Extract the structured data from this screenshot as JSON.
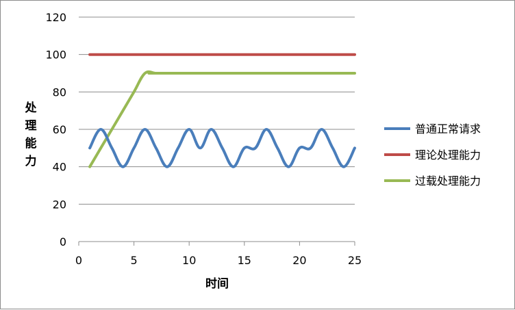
{
  "chart_data": {
    "type": "line",
    "xlabel": "时间",
    "ylabel": "处理能力",
    "xlim": [
      0,
      25
    ],
    "ylim": [
      0,
      120
    ],
    "xticks": [
      0,
      5,
      10,
      15,
      20,
      25
    ],
    "yticks": [
      0,
      20,
      40,
      60,
      80,
      100,
      120
    ],
    "grid": "horizontal",
    "legend": "right",
    "series": [
      {
        "name": "普通正常请求",
        "color": "#4a7ebb",
        "smooth": true,
        "x": [
          1,
          2,
          3,
          4,
          5,
          6,
          7,
          8,
          9,
          10,
          11,
          12,
          13,
          14,
          15,
          16,
          17,
          18,
          19,
          20,
          21,
          22,
          23,
          24,
          25
        ],
        "values": [
          50,
          60,
          50,
          40,
          50,
          60,
          50,
          40,
          50,
          60,
          50,
          60,
          50,
          40,
          50,
          50,
          60,
          50,
          40,
          50,
          50,
          60,
          50,
          40,
          50
        ]
      },
      {
        "name": "理论处理能力",
        "color": "#be4b48",
        "smooth": false,
        "x": [
          1,
          25
        ],
        "values": [
          100,
          100
        ]
      },
      {
        "name": "过载处理能力",
        "color": "#98b954",
        "smooth": true,
        "x": [
          1,
          2,
          3,
          4,
          5,
          6,
          7,
          8,
          25
        ],
        "values": [
          40,
          50,
          60,
          70,
          80,
          90,
          90,
          90,
          90
        ]
      }
    ]
  }
}
